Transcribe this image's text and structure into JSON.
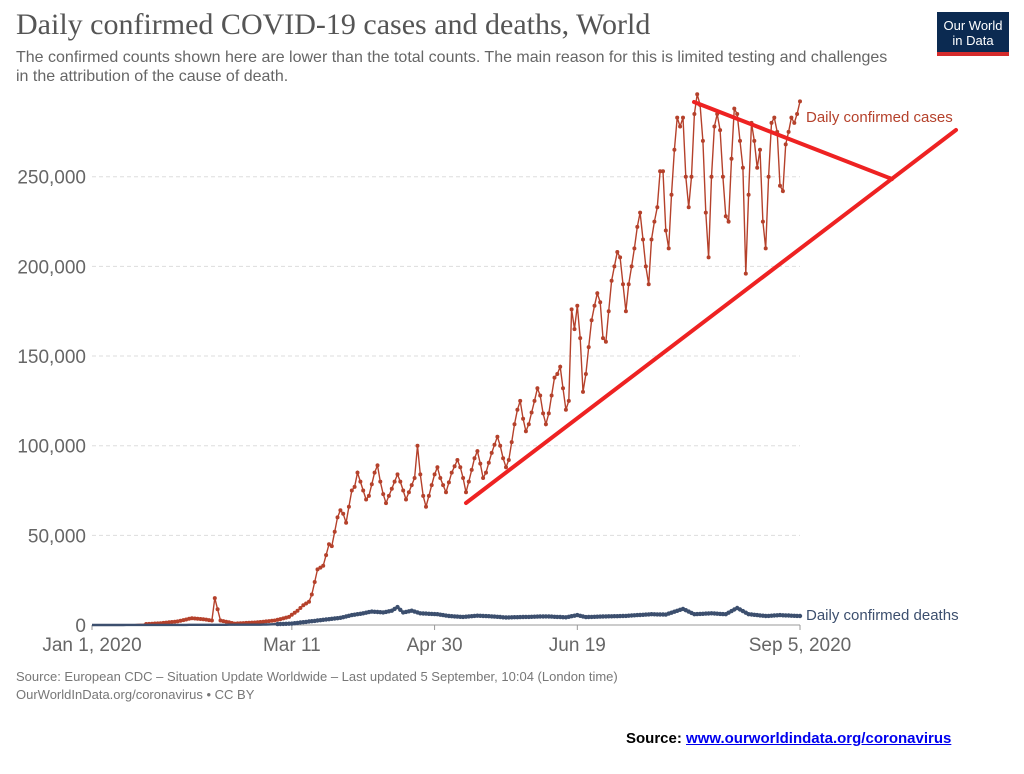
{
  "header": {
    "title": "Daily confirmed COVID-19 cases and deaths, World",
    "subtitle": "The confirmed counts shown here are lower than the total counts. The main reason for this is limited testing and challenges in the attribution of the cause of death.",
    "logo_line1": "Our World",
    "logo_line2": "in Data"
  },
  "footer": {
    "source_line1": "Source: European CDC – Situation Update Worldwide – Last updated 5 September, 10:04 (London time)",
    "source_line2": "OurWorldInData.org/coronavirus • CC BY",
    "note_label": "Source:",
    "note_link": "www.ourworldindata.org/coronavirus"
  },
  "colors": {
    "cases": "#b5412b",
    "deaths": "#3c4f6e",
    "annotation": "#ee2222",
    "grid": "#dddddd",
    "axis_text": "#666666"
  },
  "chart_data": {
    "type": "line",
    "x_range": [
      "2020-01-01",
      "2020-09-05"
    ],
    "ylim": [
      0,
      290000
    ],
    "y_ticks": [
      0,
      50000,
      100000,
      150000,
      200000,
      250000
    ],
    "y_tick_labels": [
      "0",
      "50,000",
      "100,000",
      "150,000",
      "200,000",
      "250,000"
    ],
    "x_tick_labels": [
      "Jan 1, 2020",
      "Mar 11",
      "Apr 30",
      "Jun 19",
      "Sep 5, 2020"
    ],
    "x_tick_dates": [
      "2020-01-01",
      "2020-03-11",
      "2020-04-30",
      "2020-06-19",
      "2020-09-05"
    ],
    "grid": true,
    "series": [
      {
        "name": "Daily confirmed cases",
        "points": [
          [
            "2020-01-01",
            0
          ],
          [
            "2020-01-15",
            100
          ],
          [
            "2020-01-25",
            1000
          ],
          [
            "2020-01-31",
            2000
          ],
          [
            "2020-02-05",
            3800
          ],
          [
            "2020-02-10",
            3000
          ],
          [
            "2020-02-12",
            2500
          ],
          [
            "2020-02-13",
            15000
          ],
          [
            "2020-02-15",
            2500
          ],
          [
            "2020-02-20",
            800
          ],
          [
            "2020-02-28",
            1500
          ],
          [
            "2020-03-05",
            2500
          ],
          [
            "2020-03-10",
            4500
          ],
          [
            "2020-03-13",
            8000
          ],
          [
            "2020-03-15",
            11000
          ],
          [
            "2020-03-17",
            13000
          ],
          [
            "2020-03-18",
            17000
          ],
          [
            "2020-03-20",
            31000
          ],
          [
            "2020-03-22",
            33000
          ],
          [
            "2020-03-24",
            45000
          ],
          [
            "2020-03-25",
            44000
          ],
          [
            "2020-03-27",
            60000
          ],
          [
            "2020-03-28",
            64000
          ],
          [
            "2020-03-29",
            62000
          ],
          [
            "2020-03-30",
            57000
          ],
          [
            "2020-04-01",
            75000
          ],
          [
            "2020-04-02",
            77000
          ],
          [
            "2020-04-03",
            85000
          ],
          [
            "2020-04-04",
            80000
          ],
          [
            "2020-04-05",
            75000
          ],
          [
            "2020-04-06",
            70000
          ],
          [
            "2020-04-07",
            72000
          ],
          [
            "2020-04-09",
            85000
          ],
          [
            "2020-04-10",
            89000
          ],
          [
            "2020-04-11",
            80000
          ],
          [
            "2020-04-12",
            73000
          ],
          [
            "2020-04-13",
            68000
          ],
          [
            "2020-04-14",
            72000
          ],
          [
            "2020-04-16",
            80000
          ],
          [
            "2020-04-17",
            84000
          ],
          [
            "2020-04-18",
            80000
          ],
          [
            "2020-04-19",
            75000
          ],
          [
            "2020-04-20",
            70000
          ],
          [
            "2020-04-21",
            74000
          ],
          [
            "2020-04-23",
            82000
          ],
          [
            "2020-04-24",
            100000
          ],
          [
            "2020-04-25",
            84000
          ],
          [
            "2020-04-26",
            72000
          ],
          [
            "2020-04-27",
            66000
          ],
          [
            "2020-04-28",
            72000
          ],
          [
            "2020-04-30",
            84000
          ],
          [
            "2020-05-01",
            88000
          ],
          [
            "2020-05-02",
            82000
          ],
          [
            "2020-05-03",
            78000
          ],
          [
            "2020-05-04",
            74000
          ],
          [
            "2020-05-06",
            85000
          ],
          [
            "2020-05-08",
            92000
          ],
          [
            "2020-05-09",
            88000
          ],
          [
            "2020-05-10",
            82000
          ],
          [
            "2020-05-11",
            74000
          ],
          [
            "2020-05-12",
            80000
          ],
          [
            "2020-05-14",
            93000
          ],
          [
            "2020-05-15",
            97000
          ],
          [
            "2020-05-16",
            90000
          ],
          [
            "2020-05-17",
            82000
          ],
          [
            "2020-05-18",
            85000
          ],
          [
            "2020-05-20",
            96000
          ],
          [
            "2020-05-22",
            105000
          ],
          [
            "2020-05-23",
            100000
          ],
          [
            "2020-05-24",
            93000
          ],
          [
            "2020-05-25",
            88000
          ],
          [
            "2020-05-26",
            92000
          ],
          [
            "2020-05-28",
            112000
          ],
          [
            "2020-05-29",
            120000
          ],
          [
            "2020-05-30",
            125000
          ],
          [
            "2020-05-31",
            115000
          ],
          [
            "2020-06-01",
            108000
          ],
          [
            "2020-06-02",
            112000
          ],
          [
            "2020-06-04",
            125000
          ],
          [
            "2020-06-05",
            132000
          ],
          [
            "2020-06-06",
            128000
          ],
          [
            "2020-06-07",
            118000
          ],
          [
            "2020-06-08",
            112000
          ],
          [
            "2020-06-09",
            118000
          ],
          [
            "2020-06-11",
            138000
          ],
          [
            "2020-06-12",
            140000
          ],
          [
            "2020-06-13",
            144000
          ],
          [
            "2020-06-14",
            132000
          ],
          [
            "2020-06-15",
            120000
          ],
          [
            "2020-06-16",
            125000
          ],
          [
            "2020-06-17",
            176000
          ],
          [
            "2020-06-18",
            165000
          ],
          [
            "2020-06-19",
            178000
          ],
          [
            "2020-06-20",
            160000
          ],
          [
            "2020-06-21",
            130000
          ],
          [
            "2020-06-22",
            140000
          ],
          [
            "2020-06-24",
            170000
          ],
          [
            "2020-06-25",
            178000
          ],
          [
            "2020-06-26",
            185000
          ],
          [
            "2020-06-27",
            180000
          ],
          [
            "2020-06-28",
            160000
          ],
          [
            "2020-06-29",
            158000
          ],
          [
            "2020-07-01",
            192000
          ],
          [
            "2020-07-02",
            200000
          ],
          [
            "2020-07-03",
            208000
          ],
          [
            "2020-07-04",
            205000
          ],
          [
            "2020-07-05",
            190000
          ],
          [
            "2020-07-06",
            175000
          ],
          [
            "2020-07-07",
            190000
          ],
          [
            "2020-07-09",
            210000
          ],
          [
            "2020-07-10",
            222000
          ],
          [
            "2020-07-11",
            230000
          ],
          [
            "2020-07-12",
            215000
          ],
          [
            "2020-07-13",
            200000
          ],
          [
            "2020-07-14",
            190000
          ],
          [
            "2020-07-15",
            215000
          ],
          [
            "2020-07-16",
            225000
          ],
          [
            "2020-07-17",
            233000
          ],
          [
            "2020-07-18",
            253000
          ],
          [
            "2020-07-19",
            253000
          ],
          [
            "2020-07-20",
            220000
          ],
          [
            "2020-07-21",
            210000
          ],
          [
            "2020-07-22",
            240000
          ],
          [
            "2020-07-23",
            265000
          ],
          [
            "2020-07-24",
            283000
          ],
          [
            "2020-07-25",
            278000
          ],
          [
            "2020-07-26",
            283000
          ],
          [
            "2020-07-27",
            250000
          ],
          [
            "2020-07-28",
            233000
          ],
          [
            "2020-07-29",
            250000
          ],
          [
            "2020-07-30",
            285000
          ],
          [
            "2020-07-31",
            296000
          ],
          [
            "2020-08-01",
            290000
          ],
          [
            "2020-08-02",
            270000
          ],
          [
            "2020-08-03",
            230000
          ],
          [
            "2020-08-04",
            205000
          ],
          [
            "2020-08-05",
            250000
          ],
          [
            "2020-08-06",
            278000
          ],
          [
            "2020-08-07",
            285000
          ],
          [
            "2020-08-08",
            276000
          ],
          [
            "2020-08-09",
            250000
          ],
          [
            "2020-08-10",
            228000
          ],
          [
            "2020-08-11",
            225000
          ],
          [
            "2020-08-12",
            260000
          ],
          [
            "2020-08-13",
            288000
          ],
          [
            "2020-08-14",
            285000
          ],
          [
            "2020-08-15",
            270000
          ],
          [
            "2020-08-16",
            255000
          ],
          [
            "2020-08-17",
            196000
          ],
          [
            "2020-08-18",
            240000
          ],
          [
            "2020-08-19",
            280000
          ],
          [
            "2020-08-20",
            270000
          ],
          [
            "2020-08-21",
            255000
          ],
          [
            "2020-08-22",
            265000
          ],
          [
            "2020-08-23",
            225000
          ],
          [
            "2020-08-24",
            210000
          ],
          [
            "2020-08-25",
            250000
          ],
          [
            "2020-08-26",
            280000
          ],
          [
            "2020-08-27",
            283000
          ],
          [
            "2020-08-28",
            275000
          ],
          [
            "2020-08-29",
            245000
          ],
          [
            "2020-08-30",
            242000
          ],
          [
            "2020-08-31",
            268000
          ],
          [
            "2020-09-01",
            275000
          ],
          [
            "2020-09-02",
            283000
          ],
          [
            "2020-09-03",
            280000
          ],
          [
            "2020-09-04",
            285000
          ],
          [
            "2020-09-05",
            292000
          ]
        ]
      },
      {
        "name": "Daily confirmed deaths",
        "points": [
          [
            "2020-01-01",
            0
          ],
          [
            "2020-02-10",
            100
          ],
          [
            "2020-03-01",
            200
          ],
          [
            "2020-03-11",
            800
          ],
          [
            "2020-03-20",
            2500
          ],
          [
            "2020-03-28",
            4000
          ],
          [
            "2020-04-01",
            5500
          ],
          [
            "2020-04-05",
            6500
          ],
          [
            "2020-04-08",
            7500
          ],
          [
            "2020-04-12",
            7000
          ],
          [
            "2020-04-15",
            8000
          ],
          [
            "2020-04-17",
            10000
          ],
          [
            "2020-04-19",
            7000
          ],
          [
            "2020-04-22",
            8000
          ],
          [
            "2020-04-25",
            6500
          ],
          [
            "2020-05-01",
            6000
          ],
          [
            "2020-05-05",
            5000
          ],
          [
            "2020-05-10",
            4500
          ],
          [
            "2020-05-15",
            5200
          ],
          [
            "2020-05-20",
            4800
          ],
          [
            "2020-05-25",
            4200
          ],
          [
            "2020-06-01",
            4500
          ],
          [
            "2020-06-08",
            4800
          ],
          [
            "2020-06-15",
            4300
          ],
          [
            "2020-06-19",
            5500
          ],
          [
            "2020-06-22",
            4400
          ],
          [
            "2020-06-29",
            4800
          ],
          [
            "2020-07-05",
            5000
          ],
          [
            "2020-07-10",
            5500
          ],
          [
            "2020-07-15",
            6000
          ],
          [
            "2020-07-20",
            5800
          ],
          [
            "2020-07-26",
            9000
          ],
          [
            "2020-07-30",
            6000
          ],
          [
            "2020-08-05",
            6500
          ],
          [
            "2020-08-10",
            6000
          ],
          [
            "2020-08-14",
            9500
          ],
          [
            "2020-08-18",
            6000
          ],
          [
            "2020-08-24",
            5000
          ],
          [
            "2020-08-29",
            5500
          ],
          [
            "2020-09-05",
            5000
          ]
        ]
      }
    ]
  }
}
